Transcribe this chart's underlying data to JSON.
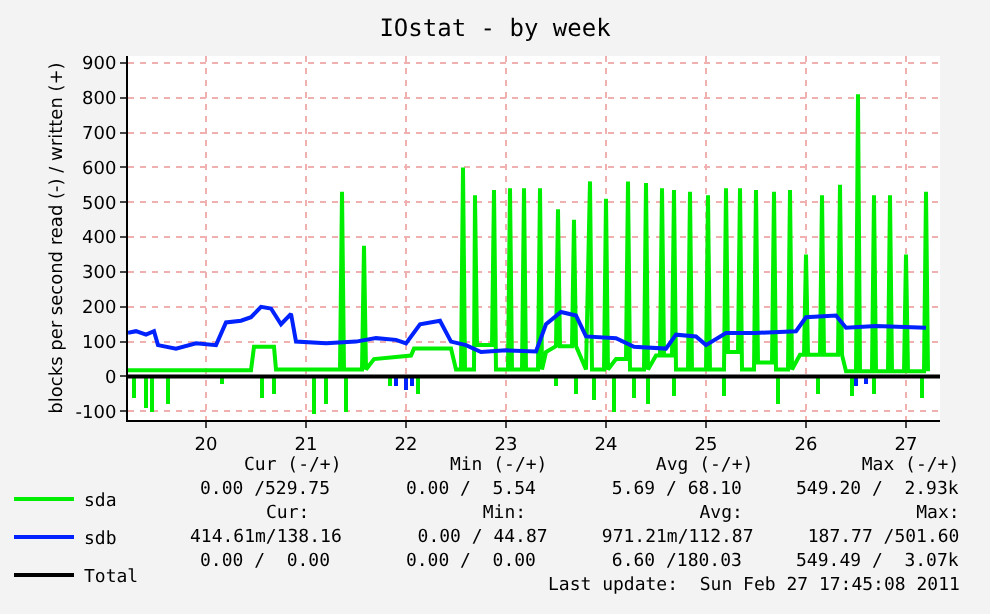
{
  "chart_data": {
    "type": "line",
    "title": "IOstat - by week",
    "ylabel": "blocks per second read (-) / written (+)",
    "xlim": [
      19.22,
      27.34
    ],
    "xticks": [
      20,
      21,
      22,
      23,
      24,
      25,
      26,
      27
    ],
    "ylim": [
      -125,
      920
    ],
    "yticks": [
      -100,
      0,
      100,
      200,
      300,
      400,
      500,
      600,
      700,
      800,
      900
    ],
    "grid": true,
    "legend": "bottom left",
    "series": [
      {
        "name": "sda",
        "color": "#00ee00",
        "x": [
          19.22,
          20.45,
          20.48,
          20.68,
          20.7,
          21.34,
          21.36,
          21.38,
          21.56,
          21.58,
          21.6,
          21.68,
          22.05,
          22.08,
          22.45,
          22.5,
          22.55,
          22.57,
          22.59,
          22.68,
          22.69,
          22.71,
          22.86,
          22.88,
          22.9,
          23.02,
          23.04,
          23.06,
          23.16,
          23.18,
          23.2,
          23.32,
          23.34,
          23.36,
          23.4,
          23.5,
          23.52,
          23.54,
          23.66,
          23.68,
          23.7,
          23.8,
          23.84,
          23.86,
          23.98,
          24.0,
          24.02,
          24.1,
          24.2,
          24.22,
          24.24,
          24.38,
          24.4,
          24.42,
          24.5,
          24.54,
          24.56,
          24.58,
          24.66,
          24.68,
          24.7,
          24.82,
          24.84,
          24.86,
          25.0,
          25.02,
          25.04,
          25.18,
          25.2,
          25.22,
          25.32,
          25.34,
          25.36,
          25.48,
          25.5,
          25.52,
          25.66,
          25.68,
          25.7,
          25.82,
          25.84,
          25.86,
          25.94,
          25.98,
          26.0,
          26.02,
          26.14,
          26.16,
          26.18,
          26.32,
          26.34,
          26.36,
          26.4,
          26.5,
          26.52,
          26.54,
          26.66,
          26.68,
          26.7,
          26.82,
          26.84,
          26.86,
          26.98,
          27.0,
          27.02,
          27.18,
          27.2,
          27.22
        ],
        "values": [
          18,
          18,
          85,
          85,
          20,
          20,
          530,
          20,
          20,
          375,
          20,
          50,
          60,
          80,
          80,
          20,
          20,
          600,
          20,
          20,
          520,
          90,
          90,
          535,
          20,
          20,
          540,
          20,
          20,
          540,
          20,
          20,
          540,
          20,
          70,
          87,
          480,
          87,
          87,
          450,
          87,
          20,
          560,
          20,
          20,
          510,
          20,
          50,
          50,
          560,
          20,
          20,
          555,
          20,
          60,
          60,
          540,
          60,
          60,
          535,
          20,
          20,
          530,
          20,
          20,
          520,
          20,
          20,
          540,
          70,
          70,
          540,
          20,
          20,
          535,
          40,
          40,
          530,
          20,
          20,
          535,
          20,
          62,
          62,
          350,
          62,
          62,
          520,
          62,
          62,
          550,
          62,
          15,
          15,
          810,
          15,
          15,
          520,
          15,
          15,
          520,
          15,
          15,
          350,
          15,
          15,
          530,
          15
        ]
      },
      {
        "type": "bar",
        "color": "#00ee00",
        "x": [
          19.28,
          19.4,
          19.46,
          19.62,
          20.16,
          20.56,
          20.68,
          21.08,
          21.2,
          21.4,
          21.84,
          22.13,
          23.5,
          23.7,
          23.88,
          24.08,
          24.28,
          24.42,
          24.68,
          25.18,
          25.72,
          26.12,
          26.46,
          26.68,
          27.16
        ],
        "values": [
          -60,
          -90,
          -100,
          -80,
          -20,
          -60,
          -50,
          -110,
          -80,
          -100,
          -30,
          -50,
          -30,
          -50,
          -70,
          -100,
          -60,
          -80,
          -55,
          -55,
          -80,
          -50,
          -55,
          -50,
          -60
        ]
      },
      {
        "name": "sdb",
        "color": "#0022ff",
        "x": [
          19.22,
          19.3,
          19.4,
          19.48,
          19.52,
          19.7,
          19.9,
          20.1,
          20.2,
          20.35,
          20.45,
          20.55,
          20.65,
          20.75,
          20.85,
          20.9,
          21.2,
          21.5,
          21.7,
          21.9,
          22.0,
          22.14,
          22.34,
          22.45,
          22.6,
          22.75,
          23.0,
          23.3,
          23.4,
          23.55,
          23.7,
          23.8,
          24.1,
          24.28,
          24.6,
          24.7,
          24.9,
          25.0,
          25.2,
          25.5,
          25.9,
          26.0,
          26.3,
          26.4,
          26.7,
          27.2
        ],
        "values": [
          125,
          130,
          120,
          130,
          90,
          80,
          95,
          90,
          155,
          160,
          170,
          200,
          195,
          150,
          180,
          100,
          95,
          100,
          110,
          105,
          95,
          150,
          160,
          100,
          90,
          70,
          75,
          72,
          150,
          185,
          175,
          115,
          110,
          85,
          80,
          120,
          115,
          90,
          125,
          125,
          130,
          170,
          175,
          140,
          145,
          140
        ]
      },
      {
        "type": "bar",
        "color": "#0022ff",
        "x": [
          21.9,
          22.0,
          22.06,
          26.5,
          26.6
        ],
        "values": [
          -30,
          -40,
          -25,
          -30,
          -20
        ]
      },
      {
        "name": "Total",
        "color": "#000000",
        "x": [
          19.22,
          27.34
        ],
        "values": [
          0,
          0
        ]
      }
    ],
    "annotations": [
      "Cur (-/+)          Min (-/+)          Avg (-/+)          Max (-/+)",
      "0.00 /529.75       0.00 /  5.54       5.69 / 68.10     549.20 /  2.93k",
      "Cur:                Min:                Avg:                Max:",
      "414.61m/138.16       0.00 / 44.87     971.21m/112.87     187.77 /501.60",
      "0.00 /  0.00       0.00 /  0.00       6.60 /180.03     549.49 /  3.07k",
      "Last update:  Sun Feb 27 17:45:08 2011"
    ]
  }
}
